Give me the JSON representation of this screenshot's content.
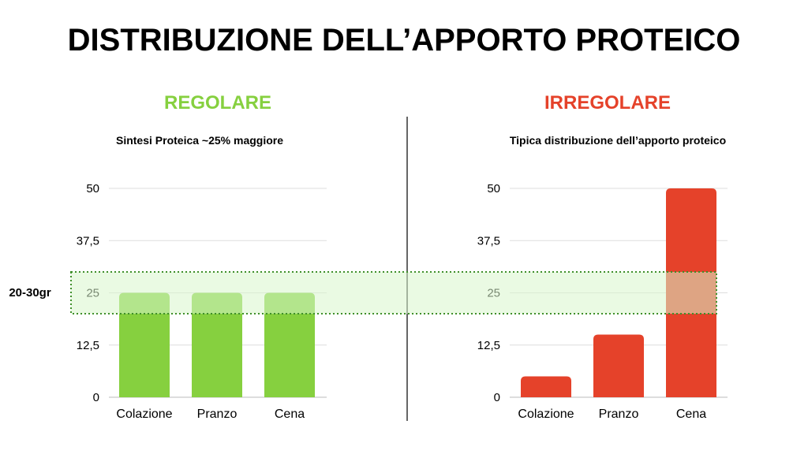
{
  "title": "DISTRIBUZIONE DELL’APPORTO PROTEICO",
  "band": {
    "label": "20-30gr",
    "range": [
      20,
      30
    ],
    "fill": "#d9f5cc",
    "stroke": "#3f8f2a"
  },
  "colors": {
    "regular": "#86d03f",
    "irregular": "#e5422a",
    "grid": "#dddddd",
    "divider": "#333333"
  },
  "chart_data": [
    {
      "type": "bar",
      "heading": "REGOLARE",
      "subtitle": "Sintesi Proteica ~25% maggiore",
      "categories": [
        "Colazione",
        "Pranzo",
        "Cena"
      ],
      "values": [
        25,
        25,
        25
      ],
      "ylim": [
        0,
        50
      ],
      "yticks": [
        "0",
        "12,5",
        "25",
        "37,5",
        "50"
      ],
      "grid": true,
      "color": "#86d03f"
    },
    {
      "type": "bar",
      "heading": "IRREGOLARE",
      "subtitle": "Tipica distribuzione dell’apporto proteico",
      "categories": [
        "Colazione",
        "Pranzo",
        "Cena"
      ],
      "values": [
        5,
        15,
        50
      ],
      "ylim": [
        0,
        50
      ],
      "yticks": [
        "0",
        "12,5",
        "25",
        "37,5",
        "50"
      ],
      "grid": true,
      "color": "#e5422a"
    }
  ]
}
